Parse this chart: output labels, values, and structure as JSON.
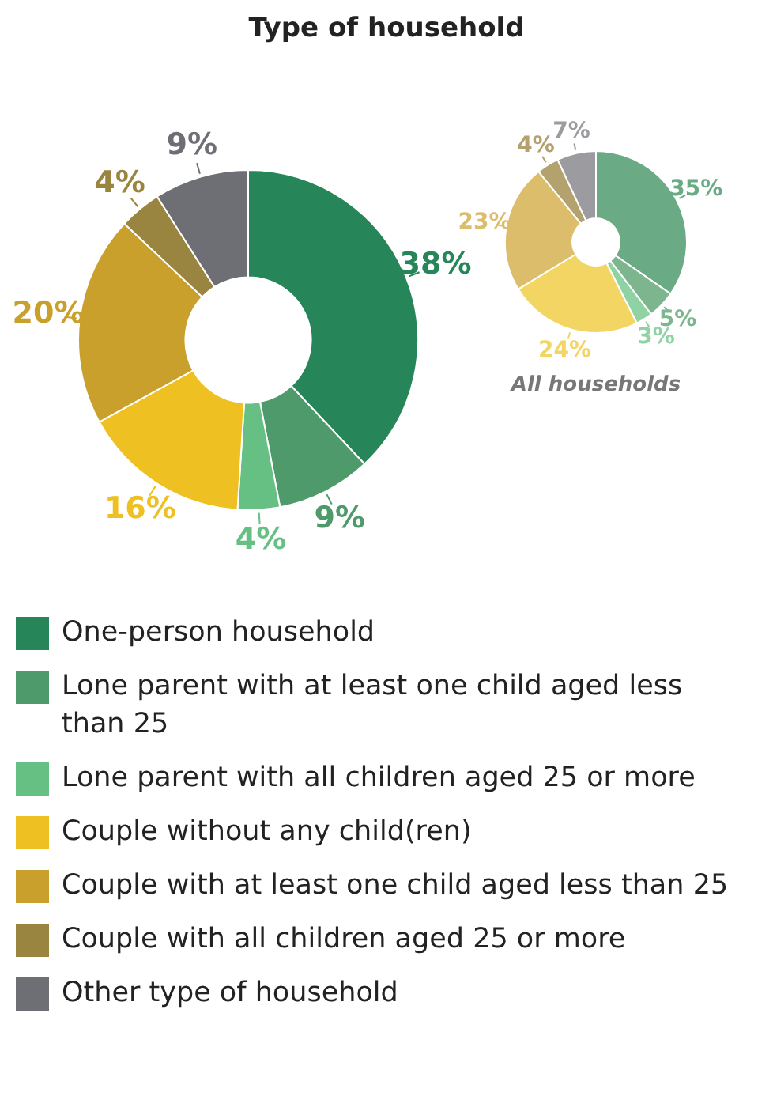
{
  "chart_data": [
    {
      "type": "donut",
      "title": "Type of household",
      "categories": [
        "One-person household",
        "Lone parent with at least one child aged less than 25",
        "Lone parent with all children aged 25 or more",
        "Couple without any child(ren)",
        "Couple with at least one child aged less than 25",
        "Couple with all children aged 25 or more",
        "Other type of household"
      ],
      "values": [
        38,
        9,
        4,
        16,
        20,
        4,
        9
      ],
      "value_labels": [
        "38%",
        "9%",
        "4%",
        "16%",
        "20%",
        "4%",
        "9%"
      ],
      "colors": [
        "#27855a",
        "#4e9a6a",
        "#66c083",
        "#efc021",
        "#c9a02c",
        "#9a8540",
        "#6e6e75"
      ],
      "legend": "bottom"
    },
    {
      "type": "donut",
      "categories": [
        null,
        null,
        null,
        null,
        null,
        null,
        null
      ],
      "values": [
        35,
        5,
        3,
        24,
        23,
        4,
        7
      ],
      "value_labels": [
        "35%",
        "5%",
        "3%",
        "24%",
        "23%",
        "4%",
        "7%"
      ],
      "colors": [
        "#6aaa84",
        "#7db68e",
        "#8fd3a5",
        "#f2d563",
        "#dcbd6b",
        "#b3a26d",
        "#9c9ca0"
      ],
      "annotations": [
        "All households"
      ]
    }
  ]
}
